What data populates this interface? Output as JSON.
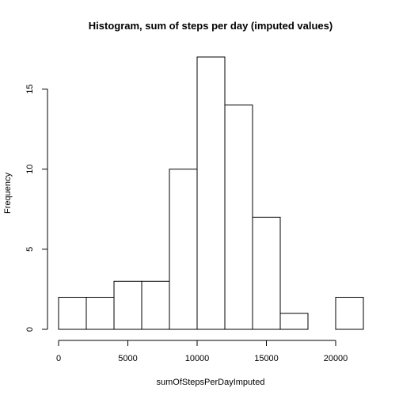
{
  "chart_data": {
    "type": "bar",
    "title": "Histogram, sum of steps per day (imputed values)",
    "xlabel": "sumOfStepsPerDayImputed",
    "ylabel": "Frequency",
    "bins": [
      {
        "start": 0,
        "end": 2000,
        "count": 2
      },
      {
        "start": 2000,
        "end": 4000,
        "count": 2
      },
      {
        "start": 4000,
        "end": 6000,
        "count": 3
      },
      {
        "start": 6000,
        "end": 8000,
        "count": 3
      },
      {
        "start": 8000,
        "end": 10000,
        "count": 10
      },
      {
        "start": 10000,
        "end": 12000,
        "count": 17
      },
      {
        "start": 12000,
        "end": 14000,
        "count": 14
      },
      {
        "start": 14000,
        "end": 16000,
        "count": 7
      },
      {
        "start": 16000,
        "end": 18000,
        "count": 1
      },
      {
        "start": 18000,
        "end": 20000,
        "count": 0
      },
      {
        "start": 20000,
        "end": 22000,
        "count": 2
      }
    ],
    "xlim": [
      0,
      22000
    ],
    "ylim": [
      0,
      17
    ],
    "x_ticks": [
      0,
      5000,
      10000,
      15000,
      20000
    ],
    "x_tick_labels": [
      "0",
      "5000",
      "10000",
      "15000",
      "20000"
    ],
    "y_ticks": [
      0,
      5,
      10,
      15
    ],
    "y_tick_labels": [
      "0",
      "5",
      "10",
      "15"
    ],
    "grid": false,
    "bar_fill": "#ffffff",
    "bar_stroke": "#000000"
  }
}
